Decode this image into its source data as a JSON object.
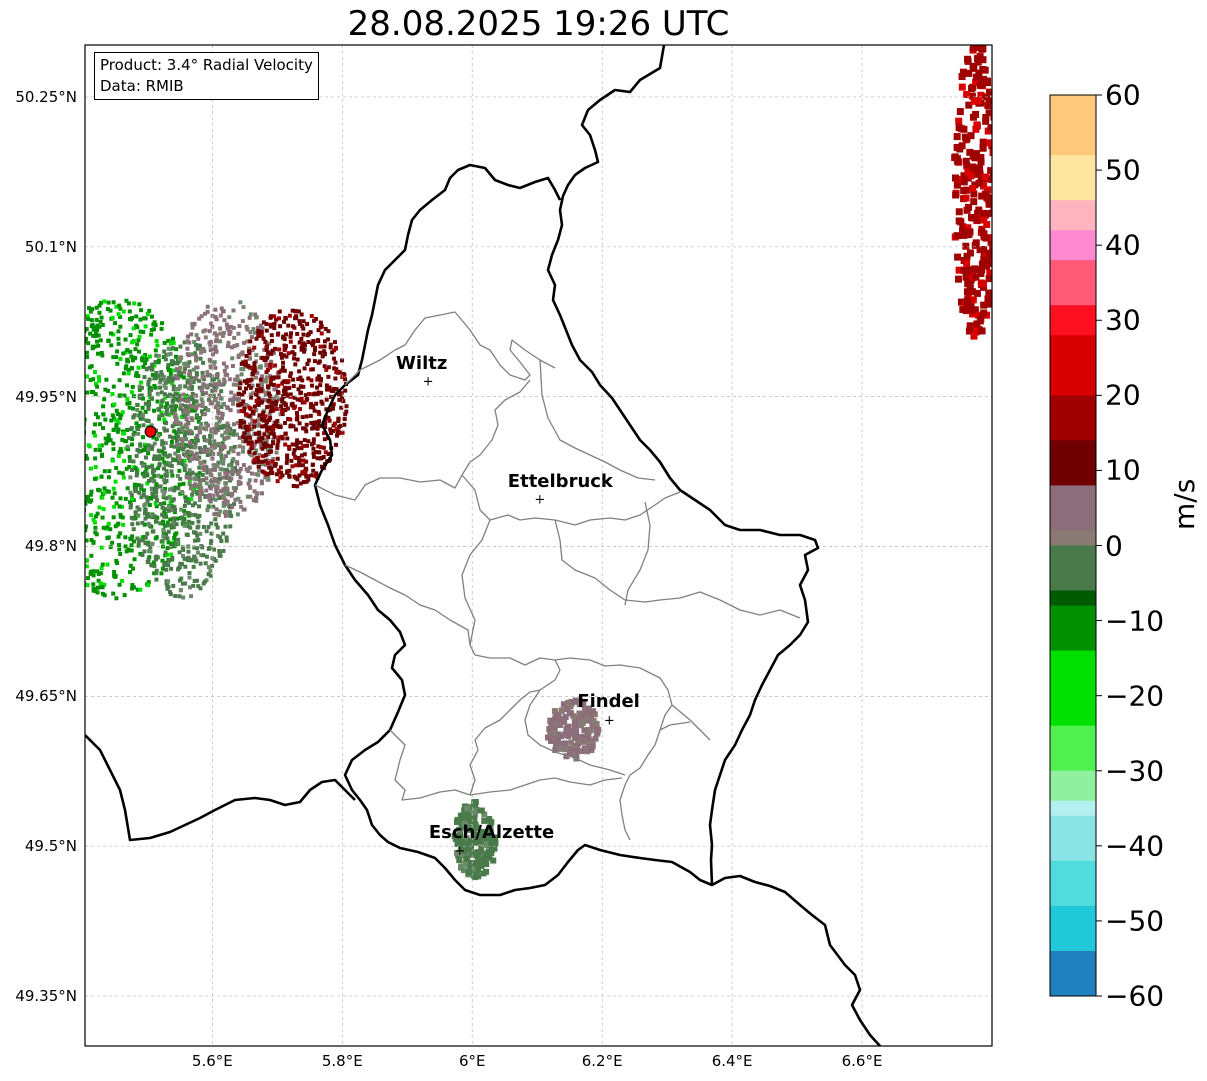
{
  "title": "28.08.2025 19:26 UTC",
  "info_box": {
    "product": "Product: 3.4° Radial Velocity",
    "data_source": "Data: RMIB"
  },
  "axes": {
    "lat_ticks": [
      "50.25°N",
      "50.1°N",
      "49.95°N",
      "49.8°N",
      "49.65°N",
      "49.5°N",
      "49.35°N"
    ],
    "lon_ticks": [
      "5.6°E",
      "5.8°E",
      "6°E",
      "6.2°E",
      "6.4°E",
      "6.6°E"
    ],
    "gridlines": true
  },
  "cities": [
    {
      "name": "Wiltz",
      "lat": 49.966,
      "lon": 5.932
    },
    {
      "name": "Ettelbruck",
      "lat": 49.848,
      "lon": 6.104
    },
    {
      "name": "Findel",
      "lat": 49.627,
      "lon": 6.211
    },
    {
      "name": "Esch/Alzette",
      "lat": 49.496,
      "lon": 5.981
    }
  ],
  "radar_site": {
    "lat": 49.915,
    "lon": 5.505,
    "color": "#ee0000"
  },
  "colorbar": {
    "label": "m/s",
    "min": -60,
    "max": 60,
    "ticks": [
      "60",
      "50",
      "40",
      "30",
      "20",
      "10",
      "0",
      "−10",
      "−20",
      "−30",
      "−40",
      "−50",
      "−60"
    ],
    "stops": [
      {
        "v": 60,
        "c": "#ffa05a"
      },
      {
        "v": 52,
        "c": "#ffc87a"
      },
      {
        "v": 46,
        "c": "#ffe6a0"
      },
      {
        "v": 42,
        "c": "#ffb4c0"
      },
      {
        "v": 38,
        "c": "#ff8ad0"
      },
      {
        "v": 32,
        "c": "#ff5a78"
      },
      {
        "v": 28,
        "c": "#ff1020"
      },
      {
        "v": 20,
        "c": "#d80000"
      },
      {
        "v": 14,
        "c": "#a00000"
      },
      {
        "v": 9,
        "c": "#6e0000"
      },
      {
        "v": 8,
        "c": "#884050"
      },
      {
        "v": 3,
        "c": "#8c6e7a"
      },
      {
        "v": 1,
        "c": "#8a7a74"
      },
      {
        "v": 0,
        "c": "#6a8a6a"
      },
      {
        "v": -6,
        "c": "#4a7a4a"
      },
      {
        "v": -7,
        "c": "#005a00"
      },
      {
        "v": -14,
        "c": "#009000"
      },
      {
        "v": -24,
        "c": "#00e000"
      },
      {
        "v": -30,
        "c": "#50f050"
      },
      {
        "v": -34,
        "c": "#90f0a0"
      },
      {
        "v": -36,
        "c": "#b4f0f0"
      },
      {
        "v": -42,
        "c": "#8ae4e6"
      },
      {
        "v": -48,
        "c": "#50dcdc"
      },
      {
        "v": -54,
        "c": "#20c8d8"
      },
      {
        "v": -60,
        "c": "#2080c0"
      }
    ]
  },
  "echo_regions": [
    {
      "name": "radar-west-approaching",
      "lat": 49.9,
      "lon": 5.45,
      "v": -12
    },
    {
      "name": "radar-west-zero",
      "lat": 49.88,
      "lon": 5.55,
      "v": -2
    },
    {
      "name": "radar-mid-neutral",
      "lat": 49.94,
      "lon": 5.62,
      "v": 3
    },
    {
      "name": "radar-east-receding",
      "lat": 49.95,
      "lon": 5.72,
      "v": 12
    },
    {
      "name": "ne-corner-receding",
      "lat": 50.16,
      "lon": 6.77,
      "v": 18
    },
    {
      "name": "findel-cell",
      "lat": 49.62,
      "lon": 6.15,
      "v": 4
    },
    {
      "name": "esch-cell",
      "lat": 49.51,
      "lon": 6.0,
      "v": -2
    }
  ]
}
